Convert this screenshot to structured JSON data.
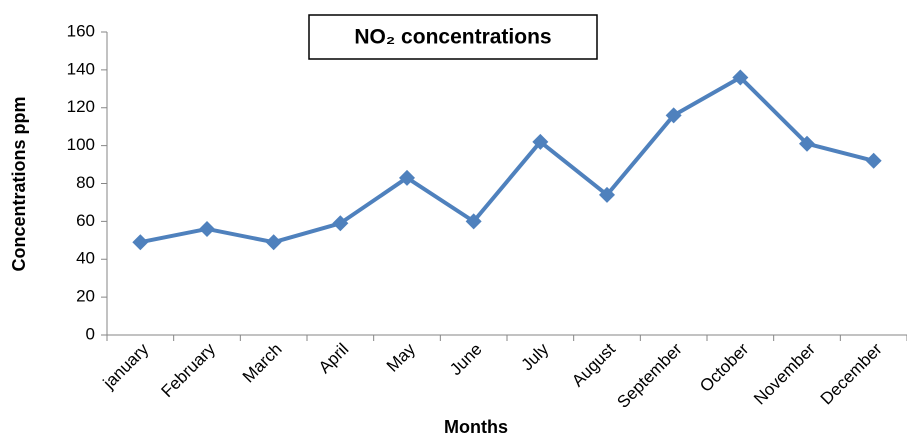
{
  "chart_data": {
    "type": "line",
    "title": "NO₂ concentrations",
    "x_label": "Months",
    "y_label": "Concentrations  ppm",
    "categories": [
      "january",
      "February",
      "March",
      "April",
      "May",
      "June",
      "July",
      "August",
      "September",
      "October",
      "November",
      "December"
    ],
    "series": [
      {
        "name": "NO₂",
        "color": "#4f81bd",
        "values": [
          49,
          56,
          49,
          59,
          83,
          60,
          102,
          74,
          116,
          136,
          101,
          92
        ]
      }
    ],
    "ylim": [
      0,
      160
    ],
    "yticks": [
      0,
      20,
      40,
      60,
      80,
      100,
      120,
      140,
      160
    ],
    "grid": false,
    "legend": false
  }
}
